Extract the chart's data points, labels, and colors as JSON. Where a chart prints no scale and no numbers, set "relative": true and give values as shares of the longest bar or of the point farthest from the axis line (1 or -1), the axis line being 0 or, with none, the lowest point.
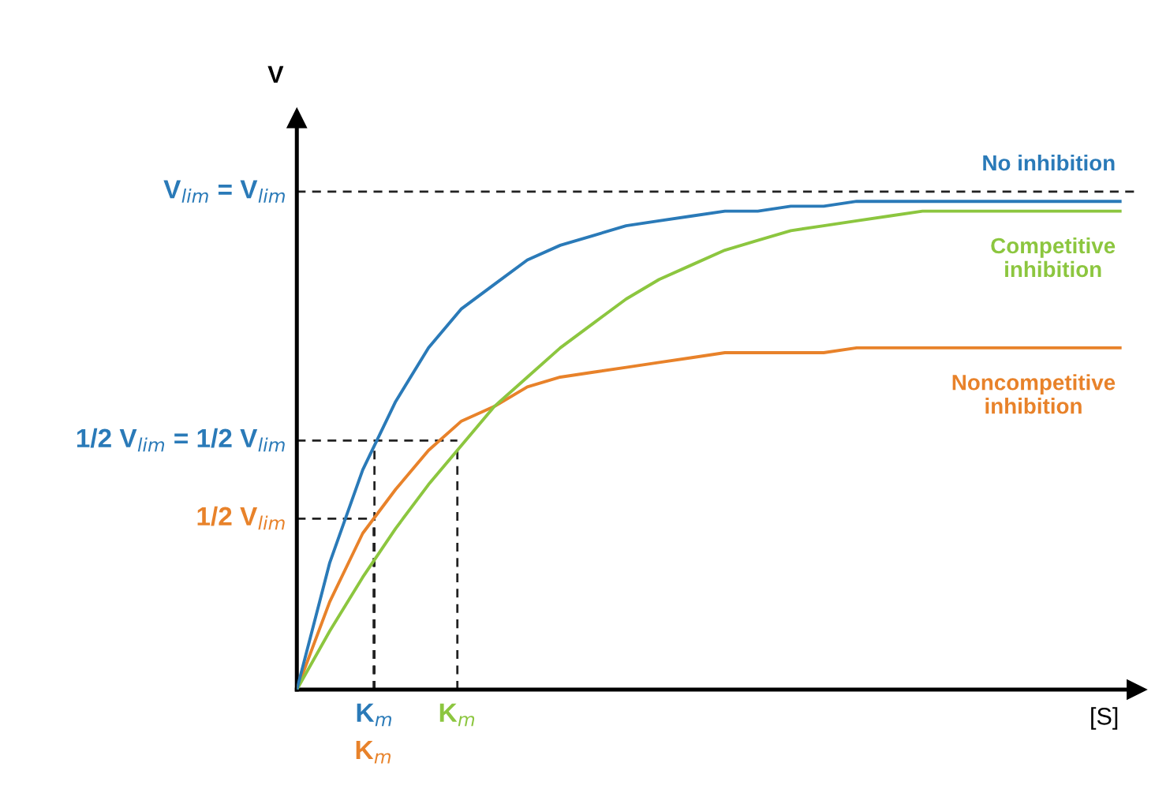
{
  "chart_data": {
    "type": "line",
    "relative": true,
    "xlabel": "[S]",
    "ylabel": "V",
    "legend": false,
    "marker": "none",
    "line_style": "solid",
    "categories": [
      null,
      null,
      null,
      null,
      null,
      null,
      null,
      null,
      null,
      null,
      null,
      null,
      null,
      null,
      null,
      null,
      null,
      null,
      null,
      null,
      null,
      null,
      null,
      null,
      null,
      null
    ],
    "series": [
      {
        "name": "No inhibition",
        "color": "#2a7ab8",
        "values": [
          0,
          0.26,
          0.45,
          0.59,
          0.7,
          0.78,
          0.83,
          0.88,
          0.91,
          0.93,
          0.95,
          0.96,
          0.97,
          0.98,
          0.98,
          0.99,
          0.99,
          1,
          1,
          1,
          1,
          1,
          1,
          1,
          1,
          1
        ]
      },
      {
        "name": "Competitive\ninhibition",
        "color": "#8cc63f",
        "values": [
          0,
          0.12,
          0.23,
          0.33,
          0.42,
          0.5,
          0.58,
          0.64,
          0.7,
          0.75,
          0.8,
          0.84,
          0.87,
          0.9,
          0.92,
          0.94,
          0.95,
          0.96,
          0.97,
          0.98,
          0.98,
          0.98,
          0.98,
          0.98,
          0.98,
          0.98
        ]
      },
      {
        "name": "Noncompetitive\ninhibition",
        "color": "#e8822a",
        "values": [
          0,
          0.18,
          0.32,
          0.41,
          0.49,
          0.55,
          0.58,
          0.62,
          0.64,
          0.65,
          0.66,
          0.67,
          0.68,
          0.69,
          0.69,
          0.69,
          0.69,
          0.7,
          0.7,
          0.7,
          0.7,
          0.7,
          0.7,
          0.7,
          0.7,
          0.7
        ]
      }
    ],
    "ref_lines": [
      {
        "axis": "y",
        "value": 1.02,
        "label": "V$_{lim}$ = V$_{lim}$",
        "line_style": "dashed"
      },
      {
        "axis": "y",
        "value": 0.51,
        "label": "1/2 V$_{lim}$ = 1/2 V$_{lim}$",
        "line_style": "dashed"
      },
      {
        "axis": "y",
        "value": 0.35,
        "label": "1/2 V$_{lim}$",
        "line_style": "dashed"
      }
    ],
    "annotations": [
      "K$_{m}$",
      "K$_{m}$",
      "K$_{m}$"
    ]
  }
}
